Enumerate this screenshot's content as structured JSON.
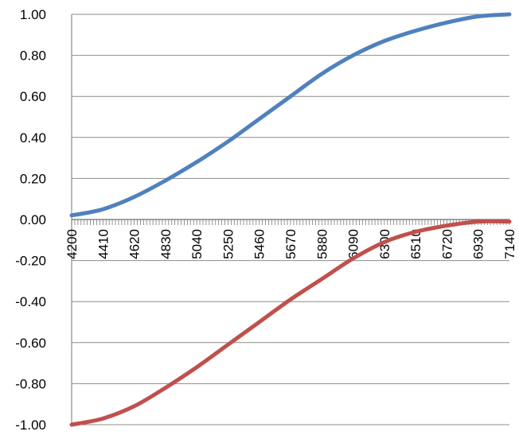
{
  "chart_data": {
    "type": "line",
    "title": "",
    "xlabel": "",
    "ylabel": "",
    "ylim": [
      -1.0,
      1.0
    ],
    "yticks": [
      "1.00",
      "0.80",
      "0.60",
      "0.40",
      "0.20",
      "0.00",
      "-0.20",
      "-0.40",
      "-0.60",
      "-0.80",
      "-1.00"
    ],
    "x_tick_labels": [
      "4200",
      "4410",
      "4620",
      "4830",
      "5040",
      "5250",
      "5460",
      "5670",
      "5880",
      "6090",
      "6300",
      "6510",
      "6720",
      "6930",
      "7140"
    ],
    "xlim": [
      4200,
      7140
    ],
    "grid": "horizontal",
    "legend": "none",
    "series": [
      {
        "color": "#4f81bd",
        "x": [
          4200,
          4410,
          4620,
          4830,
          5040,
          5250,
          5460,
          5670,
          5880,
          6090,
          6300,
          6510,
          6720,
          6930,
          7140
        ],
        "values": [
          0.02,
          0.05,
          0.11,
          0.19,
          0.28,
          0.38,
          0.49,
          0.6,
          0.71,
          0.8,
          0.87,
          0.92,
          0.96,
          0.99,
          1.0
        ]
      },
      {
        "color": "#c0504d",
        "x": [
          4200,
          4410,
          4620,
          4830,
          5040,
          5250,
          5460,
          5670,
          5880,
          6090,
          6300,
          6510,
          6720,
          6930,
          7140
        ],
        "values": [
          -1.0,
          -0.97,
          -0.91,
          -0.82,
          -0.72,
          -0.61,
          -0.5,
          -0.39,
          -0.29,
          -0.19,
          -0.11,
          -0.06,
          -0.03,
          -0.01,
          -0.01
        ]
      }
    ]
  }
}
